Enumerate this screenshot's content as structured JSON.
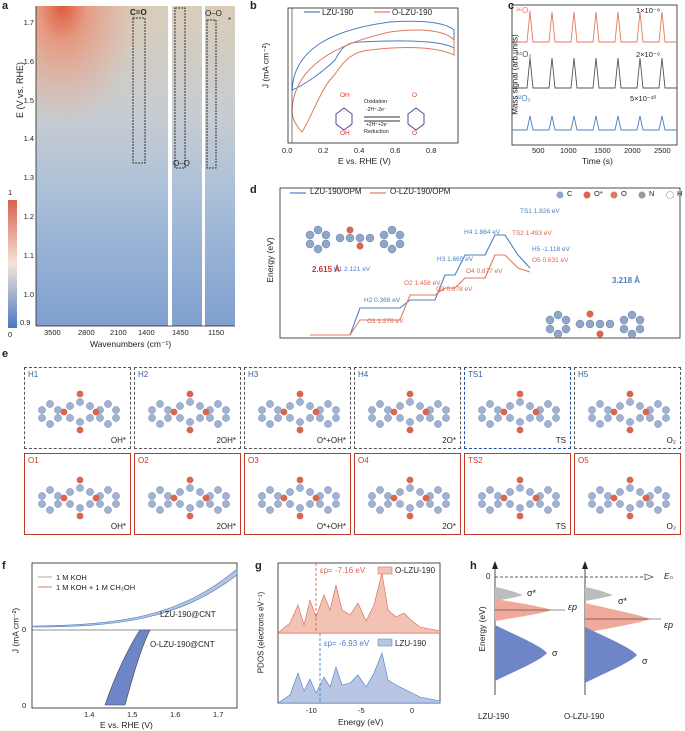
{
  "panels": {
    "a": {
      "label": "a",
      "ylabel": "E (V vs. RHE)",
      "xlabel": "Wavenumbers (cm⁻¹)",
      "yticks": [
        "1.7",
        "1.6",
        "1.5",
        "1.4",
        "1.3",
        "1.2",
        "1.1",
        "1.0",
        "0.9"
      ],
      "xticks": [
        "3500",
        "2800",
        "2100",
        "1400",
        "1450",
        "1150"
      ],
      "colorbar_ticks": [
        "1",
        "0"
      ],
      "annot_co": "C=O",
      "annot_oo_top": "O–O",
      "annot_oo_mid": "O–O",
      "annot_star": "*"
    },
    "b": {
      "label": "b",
      "legend": [
        "LZU-190",
        "O-LZU-190"
      ],
      "ylabel": "J (mA cm⁻²)",
      "xlabel": "E vs. RHE (V)",
      "xticks": [
        "0.0",
        "0.2",
        "0.4",
        "0.6",
        "0.8"
      ],
      "oxidation": "Oxidation",
      "ox_eq": "-2H⁺-2e⁻",
      "red_eq": "+2H⁺+2e⁻",
      "reduction": "Reduction",
      "oh": "OH",
      "o": "O"
    },
    "c": {
      "label": "c",
      "traces": [
        {
          "name": "³⁶O₂",
          "scale": "1×10⁻⁸",
          "color": "#e07a5f"
        },
        {
          "name": "³⁴O₂",
          "scale": "2×10⁻⁹",
          "color": "#555555"
        },
        {
          "name": "³²O₂",
          "scale": "5×10⁻¹⁰",
          "color": "#4a7fc1"
        }
      ],
      "ylabel": "Mass signal (arb.units)",
      "xlabel": "Time (s)",
      "xticks": [
        "500",
        "1000",
        "1500",
        "2000",
        "2500"
      ]
    },
    "d": {
      "label": "d",
      "legend": [
        "LZU-190/OPM",
        "O-LZU-190/OPM"
      ],
      "atoms": [
        "C",
        "O*",
        "O",
        "N",
        "H"
      ],
      "ylabel": "Energy (eV)",
      "blue_states": [
        {
          "name": "H1",
          "value": "2.121 eV"
        },
        {
          "name": "H2",
          "value": "0.368 eV"
        },
        {
          "name": "H3",
          "value": "1.665 eV"
        },
        {
          "name": "H4",
          "value": "1.884 eV"
        },
        {
          "name": "TS1",
          "value": "1.826 eV"
        },
        {
          "name": "H5",
          "value": "-1.118 eV"
        }
      ],
      "red_states": [
        {
          "name": "O1",
          "value": "1.276 eV"
        },
        {
          "name": "O2",
          "value": "1.458 eV"
        },
        {
          "name": "O3",
          "value": "0.678 eV"
        },
        {
          "name": "O4",
          "value": "0.877 eV"
        },
        {
          "name": "TS2",
          "value": "1.493 eV"
        },
        {
          "name": "O5",
          "value": "0.631 eV"
        }
      ],
      "dist1": "2.615 Å",
      "dist2": "3.218 Å"
    },
    "e": {
      "label": "e",
      "row1": [
        {
          "id": "H1",
          "state": "OH*"
        },
        {
          "id": "H2",
          "state": "2OH*"
        },
        {
          "id": "H3",
          "state": "O*+OH*"
        },
        {
          "id": "H4",
          "state": "2O*"
        },
        {
          "id": "TS1",
          "state": "TS"
        },
        {
          "id": "H5",
          "state": "O₂"
        }
      ],
      "row2": [
        {
          "id": "O1",
          "state": "OH*"
        },
        {
          "id": "O2",
          "state": "2OH*"
        },
        {
          "id": "O3",
          "state": "O*+OH*"
        },
        {
          "id": "O4",
          "state": "2O*"
        },
        {
          "id": "TS2",
          "state": "TS"
        },
        {
          "id": "O5",
          "state": "O₂"
        }
      ]
    },
    "f": {
      "label": "f",
      "legend": [
        "1 M KOH",
        "1 M KOH + 1 M CH₃OH"
      ],
      "top_label": "LZU-190@CNT",
      "bottom_label": "O-LZU-190@CNT",
      "ylabel": "J (mA cm⁻²)",
      "xlabel": "E vs. RHE (V)",
      "xticks": [
        "1.4",
        "1.5",
        "1.6",
        "1.7"
      ],
      "yticks": [
        "0",
        "0"
      ]
    },
    "g": {
      "label": "g",
      "legend_top": "O-LZU-190",
      "legend_bottom": "LZU-190",
      "ep_top": "εp= -7.16 eV",
      "ep_bottom": "εp= -6.93 eV",
      "ylabel": "PDOS (electrons eV⁻¹)",
      "xlabel": "Energy (eV)",
      "xticks": [
        "-10",
        "-5",
        "0"
      ]
    },
    "h": {
      "label": "h",
      "ylabel": "Energy (eV)",
      "zero": "0",
      "ef": "Eₙ",
      "ep": "εp",
      "sigma_star": "σ*",
      "sigma": "σ",
      "left_name": "LZU-190",
      "right_name": "O-LZU-190"
    }
  }
}
